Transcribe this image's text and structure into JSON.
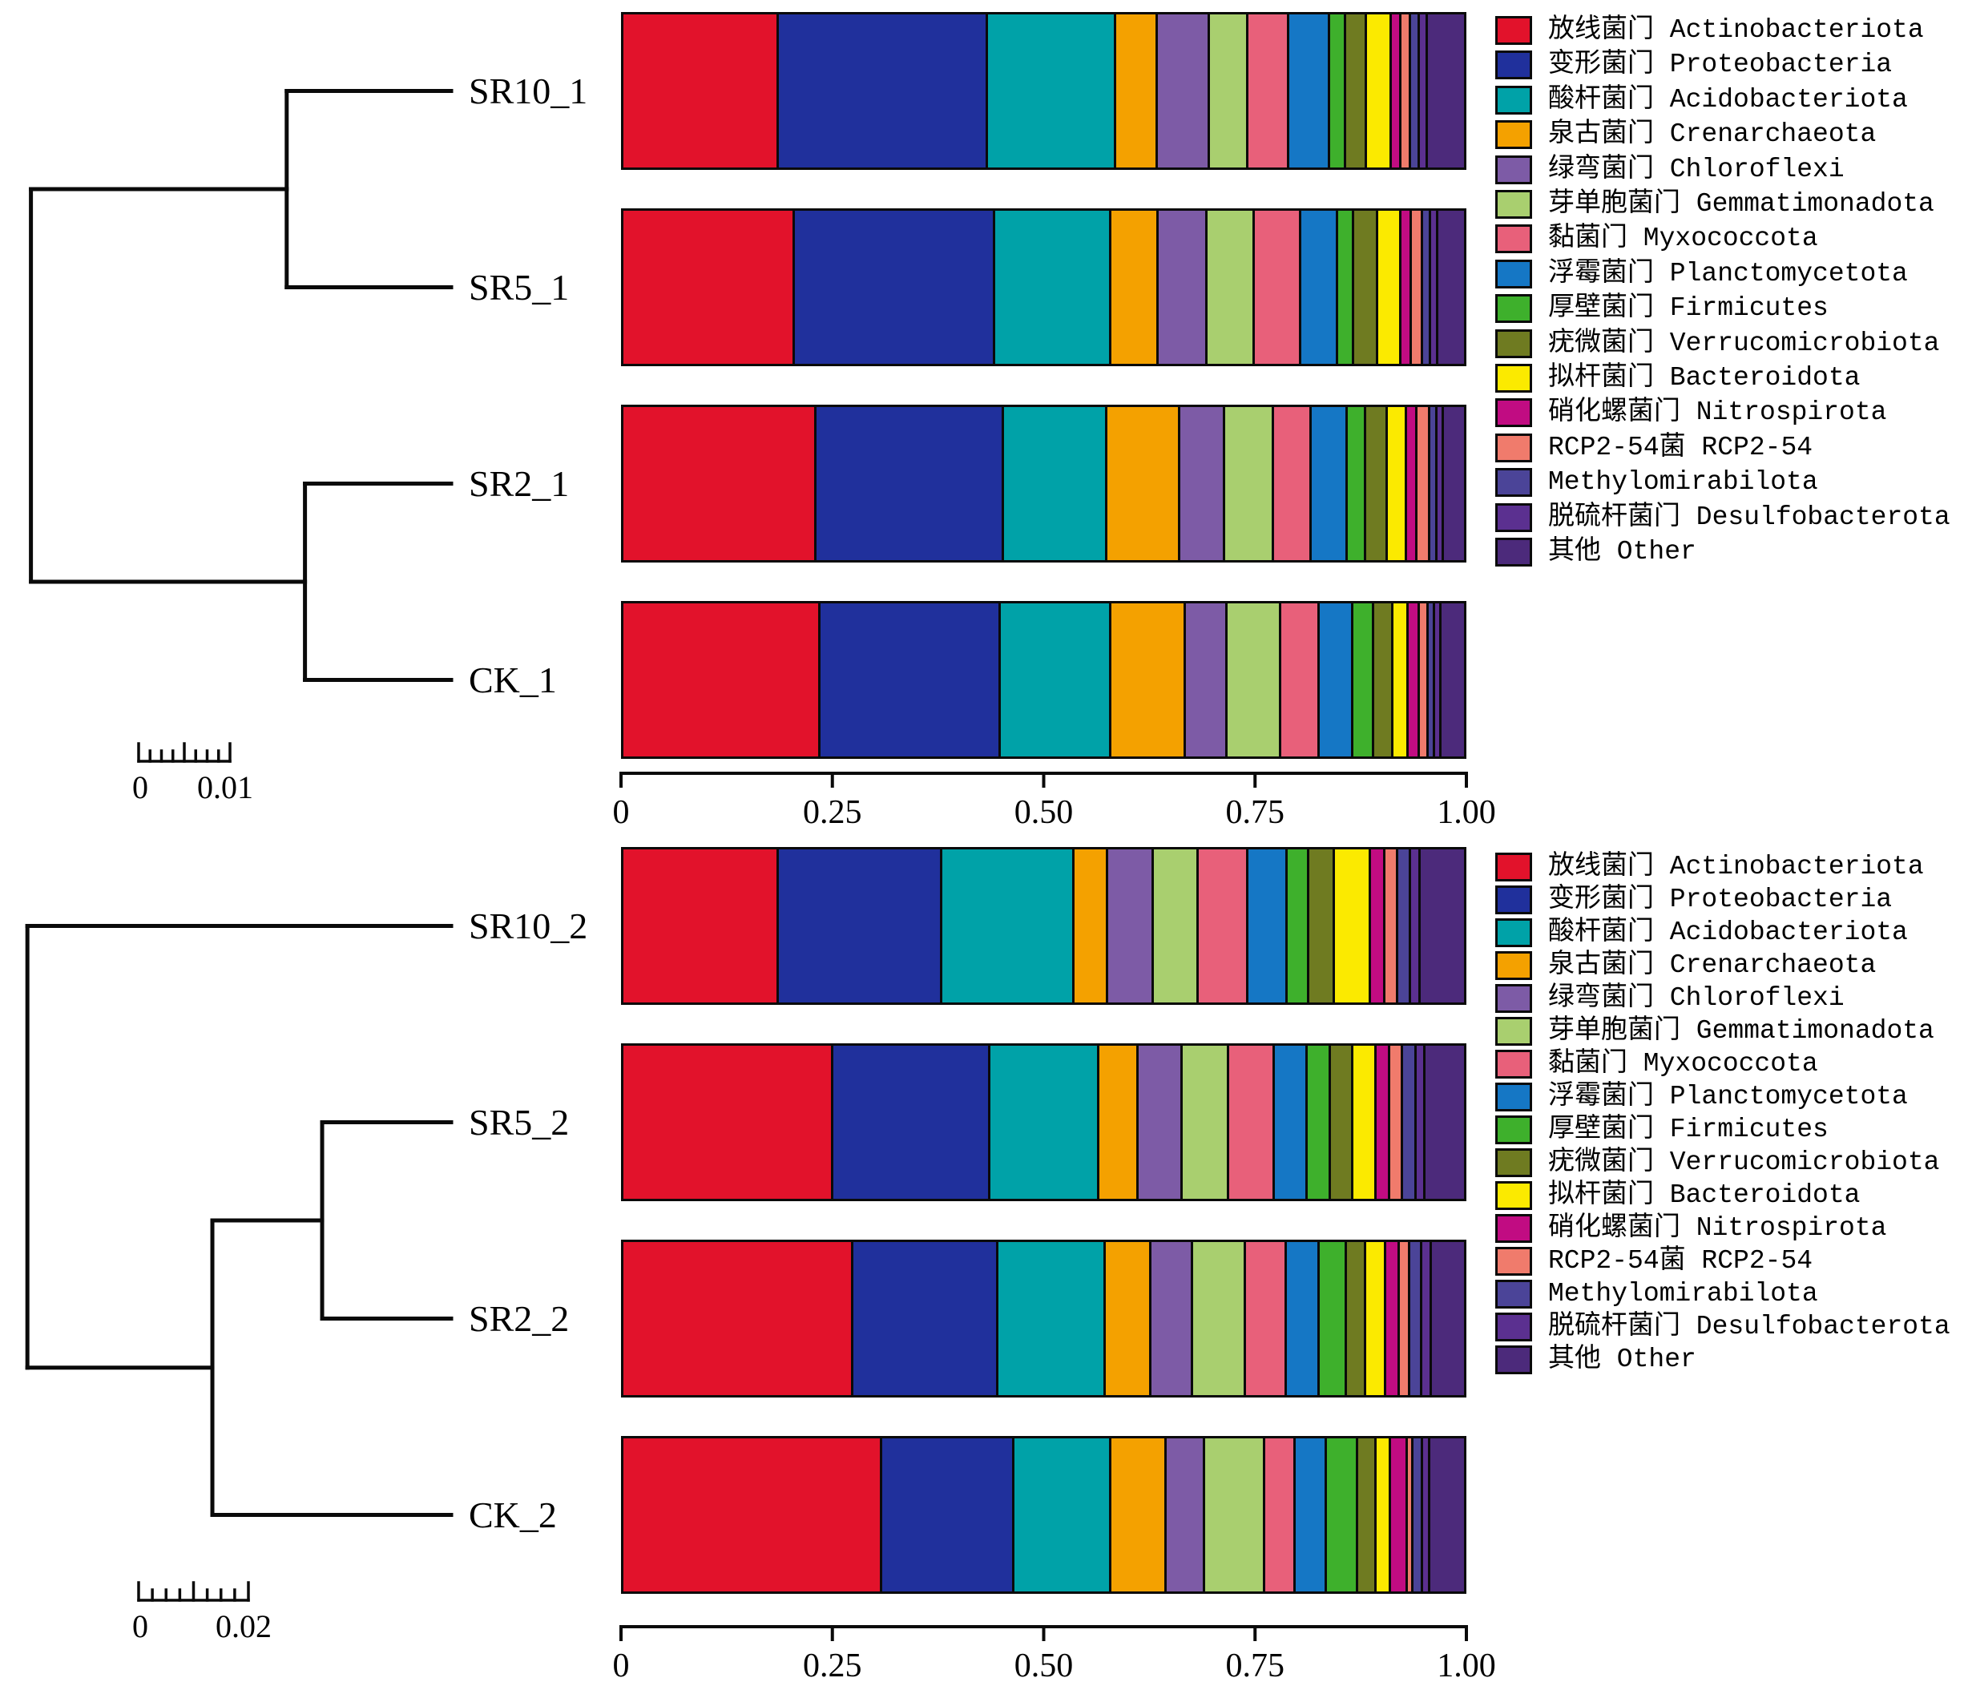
{
  "figure": {
    "background": "#ffffff",
    "line_color": "#0a0a0a",
    "description": "Hierarchical clustering dendrograms with stacked relative-abundance bar charts of bacterial phyla"
  },
  "taxa": [
    {
      "label": "放线菌门 Actinobacteriota",
      "color": "#E2122B"
    },
    {
      "label": "变形菌门 Proteobacteria",
      "color": "#20309C"
    },
    {
      "label": "酸杆菌门 Acidobacteriota",
      "color": "#00A2A8"
    },
    {
      "label": "泉古菌门 Crenarchaeota",
      "color": "#F4A100"
    },
    {
      "label": "绿弯菌门 Chloroflexi",
      "color": "#7D5BA6"
    },
    {
      "label": "芽单胞菌门 Gemmatimonadota",
      "color": "#A9CF6F"
    },
    {
      "label": "黏菌门 Myxococcota",
      "color": "#E8607A"
    },
    {
      "label": "浮霉菌门 Planctomycetota",
      "color": "#1577C5"
    },
    {
      "label": "厚壁菌门 Firmicutes",
      "color": "#3EB02C"
    },
    {
      "label": "疣微菌门 Verrucomicrobiota",
      "color": "#6F7B21"
    },
    {
      "label": "拟杆菌门 Bacteroidota",
      "color": "#FBEA00"
    },
    {
      "label": "硝化螺菌门 Nitrospirota",
      "color": "#C10C82"
    },
    {
      "label": "RCP2-54菌 RCP2-54",
      "color": "#F07B6C"
    },
    {
      "label": "Methylomirabilota",
      "color": "#4B4498"
    },
    {
      "label": "脱硫杆菌门 Desulfobacterota",
      "color": "#5B3090"
    },
    {
      "label": "其他 Other",
      "color": "#4C2A7B"
    }
  ],
  "chart_data": [
    {
      "type": "bar",
      "subtype": "stacked-horizontal-with-dendrogram",
      "title": "",
      "xlim": [
        0,
        1
      ],
      "axis_ticks": [
        "0",
        "0.25",
        "0.50",
        "0.75",
        "1.00"
      ],
      "samples": [
        "SR10_1",
        "SR5_1",
        "SR2_1",
        "CK_1"
      ],
      "values": [
        [
          0.19,
          0.257,
          0.157,
          0.048,
          0.062,
          0.045,
          0.048,
          0.048,
          0.017,
          0.022,
          0.028,
          0.009,
          0.009,
          0.008,
          0.007,
          0.045
        ],
        [
          0.21,
          0.246,
          0.142,
          0.055,
          0.058,
          0.056,
          0.055,
          0.043,
          0.016,
          0.027,
          0.026,
          0.01,
          0.011,
          0.007,
          0.006,
          0.032
        ],
        [
          0.237,
          0.23,
          0.126,
          0.087,
          0.053,
          0.058,
          0.044,
          0.041,
          0.02,
          0.024,
          0.021,
          0.01,
          0.013,
          0.006,
          0.005,
          0.025
        ],
        [
          0.242,
          0.221,
          0.135,
          0.089,
          0.049,
          0.064,
          0.045,
          0.038,
          0.023,
          0.021,
          0.016,
          0.011,
          0.008,
          0.005,
          0.005,
          0.028
        ]
      ],
      "legend_position": "right",
      "dendrogram": {
        "scale_ticks": [
          "0",
          "0.01"
        ],
        "scale_value": 0.01,
        "tree": {
          "h": 0.046,
          "c": [
            {
              "h": 0.018,
              "c": [
                "SR10_1",
                "SR5_1"
              ]
            },
            {
              "h": 0.016,
              "c": [
                "SR2_1",
                "CK_1"
              ]
            }
          ]
        }
      }
    },
    {
      "type": "bar",
      "subtype": "stacked-horizontal-with-dendrogram",
      "title": "",
      "xlim": [
        0,
        1
      ],
      "axis_ticks": [
        "0",
        "0.25",
        "0.50",
        "0.75",
        "1.00"
      ],
      "samples": [
        "SR10_2",
        "SR5_2",
        "SR2_2",
        "CK_2"
      ],
      "values": [
        [
          0.19,
          0.2,
          0.162,
          0.039,
          0.053,
          0.053,
          0.059,
          0.046,
          0.024,
          0.029,
          0.041,
          0.015,
          0.013,
          0.013,
          0.009,
          0.054
        ],
        [
          0.258,
          0.192,
          0.133,
          0.045,
          0.052,
          0.055,
          0.054,
          0.038,
          0.026,
          0.024,
          0.026,
          0.014,
          0.013,
          0.014,
          0.008,
          0.048
        ],
        [
          0.283,
          0.177,
          0.131,
          0.053,
          0.049,
          0.063,
          0.048,
          0.038,
          0.03,
          0.021,
          0.022,
          0.014,
          0.01,
          0.012,
          0.009,
          0.04
        ],
        [
          0.319,
          0.161,
          0.118,
          0.065,
          0.045,
          0.072,
          0.035,
          0.036,
          0.035,
          0.02,
          0.015,
          0.018,
          0.004,
          0.009,
          0.006,
          0.042
        ]
      ],
      "legend_position": "right",
      "dendrogram": {
        "scale_ticks": [
          "0",
          "0.02"
        ],
        "scale_value": 0.02,
        "tree": {
          "h": 0.0772,
          "c": [
            "SR10_2",
            {
              "h": 0.0435,
              "c": [
                {
                  "h": 0.0235,
                  "c": [
                    "SR5_2",
                    "SR2_2"
                  ]
                },
                "CK_2"
              ]
            }
          ]
        }
      }
    }
  ]
}
